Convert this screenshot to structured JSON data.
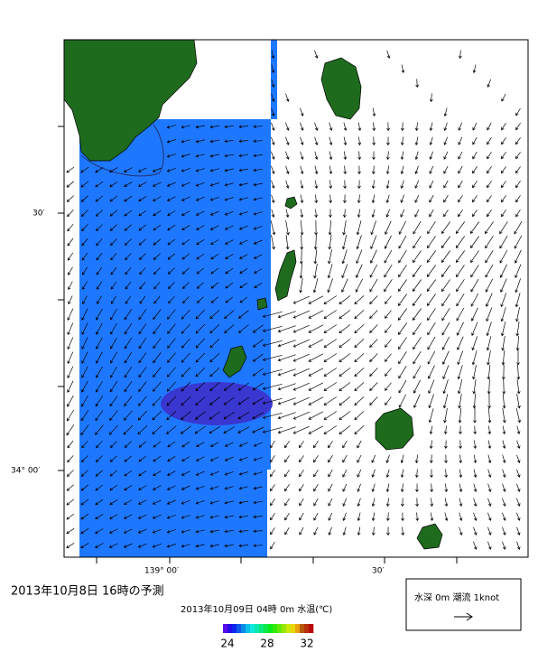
{
  "map": {
    "lat_labels": [
      "30′",
      "34° 00′"
    ],
    "lon_labels": [
      "139° 00′",
      "30′"
    ],
    "title": "2013年10月8日 16時の予測",
    "subtitle": "2013年10月09日 04時 0m 水温(℃)",
    "colorbar": {
      "ticks": [
        24,
        28,
        32
      ]
    },
    "legend": {
      "label": "水深 0m 潮流 1knot"
    }
  }
}
